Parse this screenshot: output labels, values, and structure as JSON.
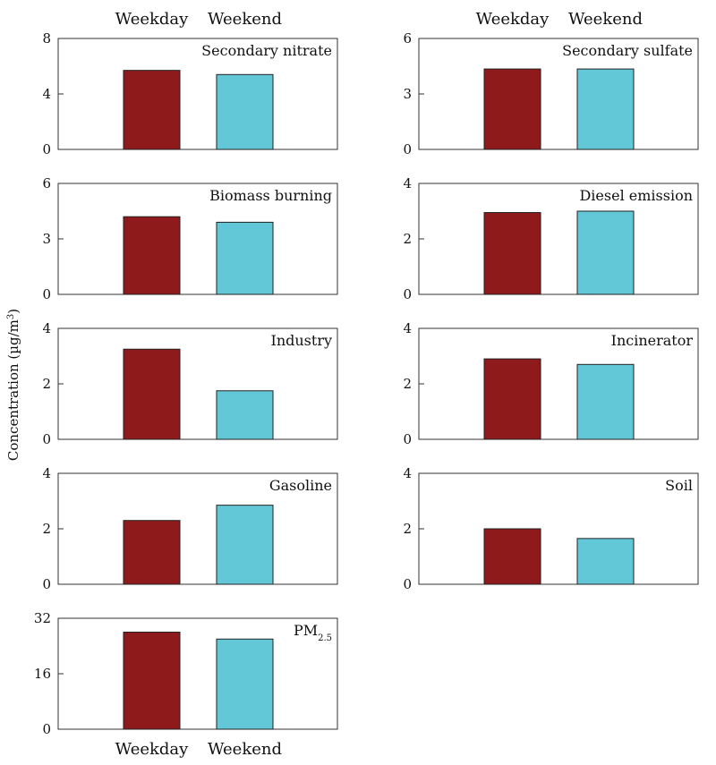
{
  "chart_data": {
    "type": "bar",
    "ylabel": "Concentration (µg/m³)",
    "ylabel_parts": {
      "prefix": "Concentration (µg/m",
      "sup": "3",
      "suffix": ")"
    },
    "categories": [
      "Weekday",
      "Weekend"
    ],
    "colors": {
      "Weekday": "#8e1a1c",
      "Weekend": "#62c7d6"
    },
    "grid": false,
    "panels": [
      {
        "id": "secondary-nitrate",
        "title": "Secondary nitrate",
        "values": [
          5.7,
          5.4
        ],
        "ylim": [
          0,
          8
        ],
        "yticks": [
          0,
          4,
          8
        ]
      },
      {
        "id": "secondary-sulfate",
        "title": "Secondary sulfate",
        "values": [
          4.35,
          4.35
        ],
        "ylim": [
          0,
          6
        ],
        "yticks": [
          0,
          3,
          6
        ]
      },
      {
        "id": "biomass-burning",
        "title": "Biomass burning",
        "values": [
          4.2,
          3.9
        ],
        "ylim": [
          0,
          6
        ],
        "yticks": [
          0,
          3,
          6
        ]
      },
      {
        "id": "diesel-emission",
        "title": "Diesel emission",
        "values": [
          2.95,
          3.0
        ],
        "ylim": [
          0,
          4
        ],
        "yticks": [
          0,
          2,
          4
        ]
      },
      {
        "id": "industry",
        "title": "Industry",
        "values": [
          3.25,
          1.75
        ],
        "ylim": [
          0,
          4
        ],
        "yticks": [
          0,
          2,
          4
        ]
      },
      {
        "id": "incinerator",
        "title": "Incinerator",
        "values": [
          2.9,
          2.7
        ],
        "ylim": [
          0,
          4
        ],
        "yticks": [
          0,
          2,
          4
        ]
      },
      {
        "id": "gasoline",
        "title": "Gasoline",
        "values": [
          2.3,
          2.85
        ],
        "ylim": [
          0,
          4
        ],
        "yticks": [
          0,
          2,
          4
        ]
      },
      {
        "id": "soil",
        "title": "Soil",
        "values": [
          2.0,
          1.65
        ],
        "ylim": [
          0,
          4
        ],
        "yticks": [
          0,
          2,
          4
        ]
      },
      {
        "id": "pm25",
        "title": "PM2.5",
        "title_parts": {
          "base": "PM",
          "sub": "2.5"
        },
        "values": [
          28,
          26
        ],
        "ylim": [
          0,
          32
        ],
        "yticks": [
          0,
          16,
          32
        ]
      }
    ]
  }
}
